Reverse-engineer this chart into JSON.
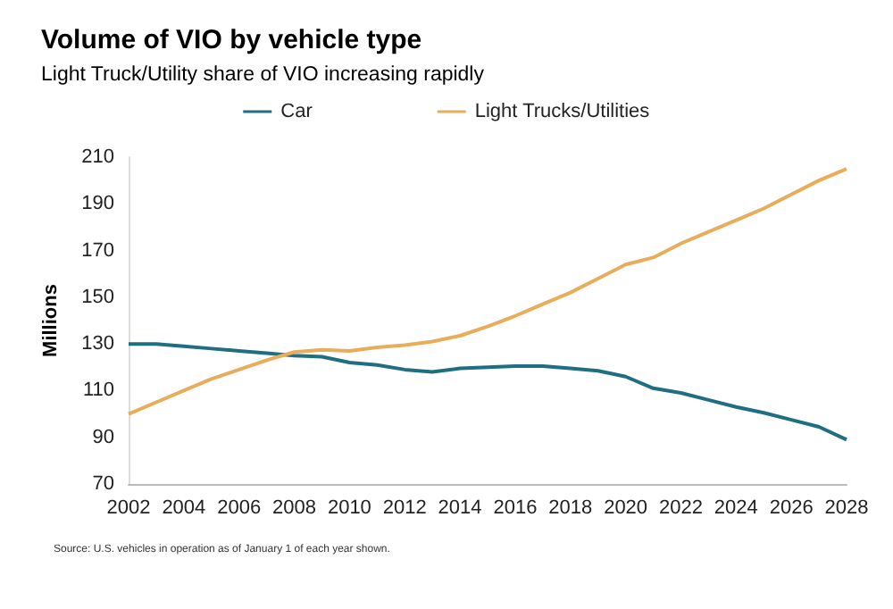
{
  "chart_data": {
    "type": "line",
    "title": "Volume of VIO by vehicle type",
    "subtitle": "Light Truck/Utility share of VIO increasing rapidly",
    "ylabel": "Millions",
    "x": [
      2002,
      2003,
      2004,
      2005,
      2006,
      2007,
      2008,
      2009,
      2010,
      2011,
      2012,
      2013,
      2014,
      2015,
      2016,
      2017,
      2018,
      2019,
      2020,
      2021,
      2022,
      2023,
      2024,
      2025,
      2026,
      2027,
      2028
    ],
    "series": [
      {
        "name": "Car",
        "color": "#1f6e82",
        "values": [
          130,
          130,
          129,
          128,
          127,
          126,
          125,
          124.5,
          122,
          121,
          119,
          118,
          119.5,
          120,
          120.5,
          120.5,
          119.5,
          118.5,
          116,
          111,
          109,
          106,
          103,
          100.5,
          97.5,
          94.5,
          89
        ]
      },
      {
        "name": "Light Trucks/Utilities",
        "color": "#e8ad5a",
        "values": [
          100,
          105,
          110,
          115,
          119,
          123,
          126.5,
          127.5,
          127,
          128.5,
          129.5,
          131,
          133.5,
          137.5,
          142,
          147,
          152,
          158,
          164,
          167,
          173,
          178,
          183,
          188,
          194,
          200,
          205
        ]
      }
    ],
    "xlim": [
      2002,
      2028
    ],
    "xticks": [
      2002,
      2004,
      2006,
      2008,
      2010,
      2012,
      2014,
      2016,
      2018,
      2020,
      2022,
      2024,
      2026,
      2028
    ],
    "ylim": [
      70,
      210
    ],
    "yticks": [
      70,
      90,
      110,
      130,
      150,
      170,
      190,
      210
    ],
    "grid": false,
    "legend": "top",
    "marker": "none",
    "line_style": "solid",
    "annotations": [
      "Source: U.S. vehicles in operation as of January 1 of each year shown."
    ]
  }
}
